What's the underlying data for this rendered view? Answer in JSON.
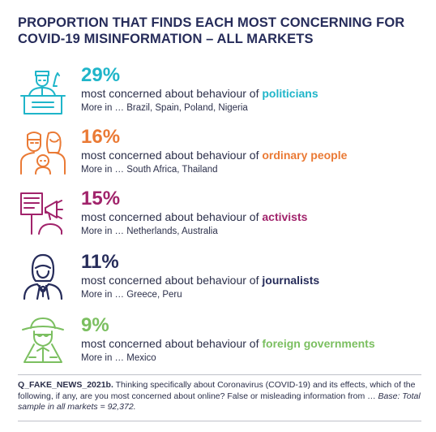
{
  "chart_data": {
    "type": "table",
    "title": "PROPORTION THAT FINDS EACH MOST CONCERNING FOR COVID-19 MISINFORMATION – ALL MARKETS",
    "rows": [
      {
        "value": 29,
        "value_label": "29%",
        "prefix": "most concerned about behaviour of ",
        "category": "politicians",
        "more": "More in … Brazil, Spain, Poland, Nigeria",
        "color": "#1fb5c9",
        "icon": "politician-icon"
      },
      {
        "value": 16,
        "value_label": "16%",
        "prefix": "most concerned about behaviour of ",
        "category": "ordinary people",
        "more": "More in … South Africa, Thailand",
        "color": "#ea7a35",
        "icon": "family-icon"
      },
      {
        "value": 15,
        "value_label": "15%",
        "prefix": "most concerned about behaviour of ",
        "category": "activists",
        "more": "More in … Netherlands, Australia",
        "color": "#a1236b",
        "icon": "activist-icon"
      },
      {
        "value": 11,
        "value_label": "11%",
        "prefix": "most concerned about behaviour of ",
        "category": "journalists",
        "more": "More in … Greece, Peru",
        "color": "#262c5a",
        "icon": "journalist-icon"
      },
      {
        "value": 9,
        "value_label": "9%",
        "prefix": "most concerned about behaviour of ",
        "category": "foreign governments",
        "more": "More in … Mexico",
        "color": "#7bbf60",
        "icon": "spy-icon"
      }
    ]
  },
  "footnote": {
    "code": "Q_FAKE_NEWS_2021b.",
    "text": " Thinking specifically about Coronavirus (COVID-19) and its effects, which of the following, if any, are you most concerned about online? False or misleading information from … ",
    "base": "Base: Total sample in all markets = 92,372."
  }
}
